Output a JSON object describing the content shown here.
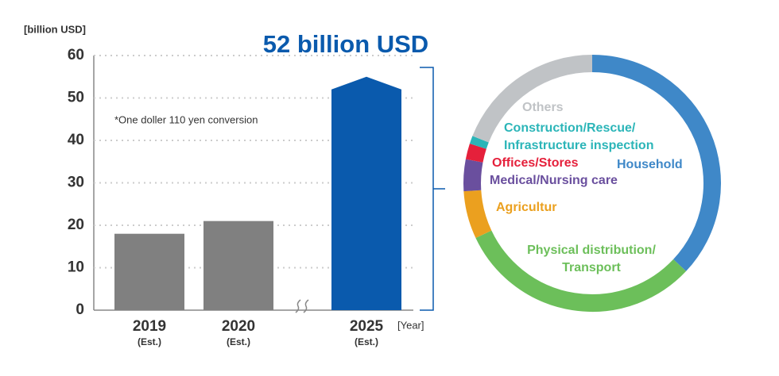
{
  "chart_data": [
    {
      "type": "bar",
      "y_label": "[billion USD]",
      "x_label": "[Year]",
      "annotation": "*One doller 110 yen conversion",
      "categories": [
        "2019\n(Est.)",
        "2020\n(Est.)",
        "2025\n(Est.)"
      ],
      "values": [
        18,
        21,
        52
      ],
      "value_labels": [
        null,
        null,
        "52 billion USD"
      ],
      "colors": [
        "#808080",
        "#808080",
        "#0a5aad"
      ],
      "ylim": [
        0,
        60
      ],
      "yticks": [
        0,
        10,
        20,
        30,
        40,
        50,
        60
      ],
      "grid": true
    },
    {
      "type": "donut",
      "categories": [
        "Household",
        "Physical distribution/\nTransport",
        "Agricultur",
        "Medical/Nursing care",
        "Offices/Stores",
        "Construction/Rescue/\nInfrastructure inspection",
        "Others"
      ],
      "values": [
        37,
        31,
        6,
        4,
        2,
        1,
        19
      ],
      "colors": [
        "#3f88c8",
        "#6cbf5a",
        "#eba01f",
        "#6a4f9e",
        "#e5203b",
        "#2bb5b8",
        "#c0c3c6"
      ]
    }
  ]
}
